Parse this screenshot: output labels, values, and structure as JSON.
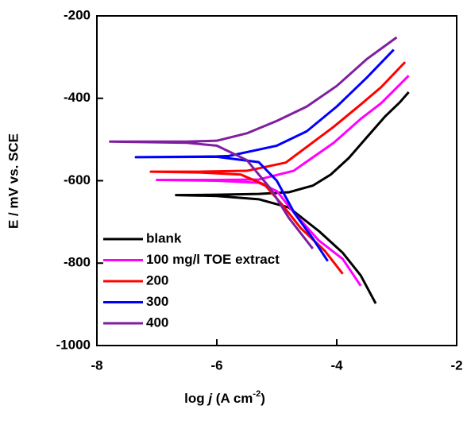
{
  "chart_data": {
    "type": "line",
    "xlabel_parts": [
      "log ",
      "j",
      " (A cm",
      "-2",
      ")"
    ],
    "ylabel": "E / mV vs. SCE",
    "xlim": [
      -8,
      -2
    ],
    "xticks": [
      -8,
      -6,
      -4,
      -2
    ],
    "ylim": [
      -1000,
      -200
    ],
    "yticks": [
      -1000,
      -800,
      -600,
      -400,
      -200
    ],
    "legend": "lower-left",
    "series": [
      {
        "name": "blank",
        "color": "#000000",
        "x": [
          -3.35,
          -3.6,
          -3.9,
          -4.3,
          -4.8,
          -5.3,
          -6,
          -6.68,
          -6,
          -5.3,
          -4.8,
          -4.4,
          -4.1,
          -3.8,
          -3.5,
          -3.2,
          -2.95,
          -2.8
        ],
        "values": [
          -898,
          -830,
          -775,
          -722,
          -665,
          -645,
          -637,
          -635,
          -634,
          -632,
          -628,
          -612,
          -585,
          -545,
          -495,
          -445,
          -410,
          -385
        ]
      },
      {
        "name": "100 mg/l TOE extract",
        "color": "#ff00ff",
        "x": [
          -3.6,
          -3.9,
          -4.3,
          -4.7,
          -5,
          -5.3,
          -6,
          -7.0,
          -6,
          -5.3,
          -4.72,
          -4.05,
          -3.6,
          -3.26,
          -2.8
        ],
        "values": [
          -855,
          -790,
          -745,
          -680,
          -625,
          -605,
          -600,
          -598,
          -598,
          -597,
          -576,
          -508,
          -450,
          -412,
          -345
        ]
      },
      {
        "name": "200",
        "color": "#ff0000",
        "x": [
          -3.9,
          -4.2,
          -4.6,
          -4.9,
          -5.2,
          -5.6,
          -6.3,
          -7.1,
          -6.3,
          -5.5,
          -4.85,
          -4.05,
          -3.6,
          -3.26,
          -2.86
        ],
        "values": [
          -826,
          -770,
          -715,
          -660,
          -610,
          -585,
          -580,
          -578,
          -578,
          -576,
          -556,
          -469,
          -415,
          -373,
          -312
        ]
      },
      {
        "name": "300",
        "color": "#0000ff",
        "x": [
          -4.15,
          -4.4,
          -4.7,
          -5,
          -5.3,
          -6,
          -7.35,
          -6,
          -5.8,
          -5,
          -4.5,
          -4,
          -3.5,
          -3.05
        ],
        "values": [
          -795,
          -740,
          -680,
          -600,
          -555,
          -542,
          -543,
          -541,
          -540,
          -515,
          -480,
          -420,
          -350,
          -282
        ]
      },
      {
        "name": "400",
        "color": "#7f1f9f",
        "x": [
          -4.4,
          -4.8,
          -5.1,
          -5.5,
          -6,
          -6.5,
          -7.78,
          -6.5,
          -6,
          -5.5,
          -5,
          -4.5,
          -4,
          -3.5,
          -3
        ],
        "values": [
          -765,
          -690,
          -620,
          -550,
          -515,
          -508,
          -505,
          -505,
          -503,
          -485,
          -455,
          -420,
          -370,
          -305,
          -252
        ]
      }
    ]
  }
}
